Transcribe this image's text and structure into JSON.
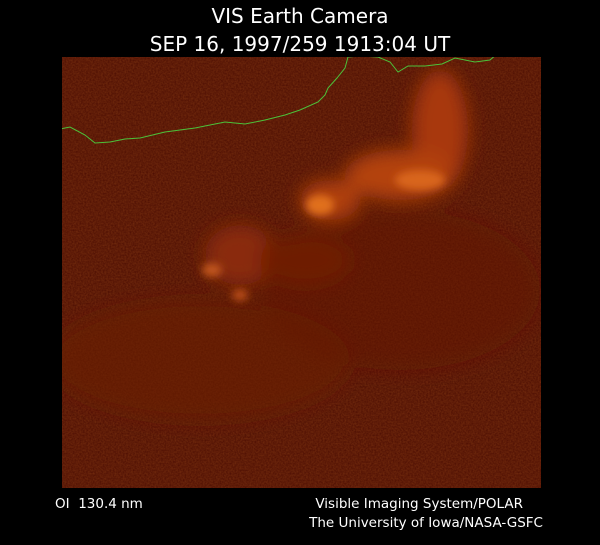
{
  "header": {
    "title": "VIS Earth Camera",
    "timestamp": "SEP 16, 1997/259 1913:04 UT"
  },
  "footer": {
    "wavelength": "OI  130.4 nm",
    "instrument": "Visible Imaging System/POLAR",
    "institution": "The University of Iowa/NASA-GSFC"
  }
}
